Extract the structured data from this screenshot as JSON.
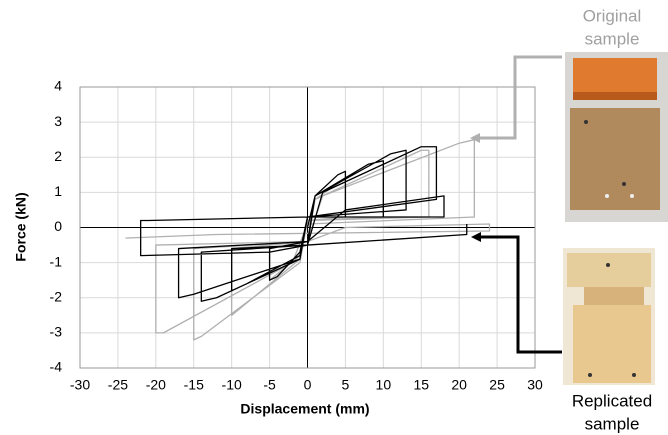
{
  "chart_data": {
    "type": "line",
    "x_label": "Displacement (mm)",
    "y_label": "Force (kN)",
    "xlim": [
      -30,
      30
    ],
    "ylim": [
      -4,
      4
    ],
    "xticks": [
      -30,
      -25,
      -20,
      -15,
      -10,
      -5,
      0,
      5,
      10,
      15,
      20,
      25,
      30
    ],
    "yticks": [
      -4,
      -3,
      -2,
      -1,
      0,
      1,
      2,
      3,
      4
    ],
    "grid": true,
    "series": [
      {
        "color": "#b0b0b0",
        "x": [
          0,
          1,
          5,
          5,
          0,
          -1,
          -5,
          -5,
          0,
          1,
          10,
          10,
          0,
          -1,
          -10,
          -10,
          0,
          1,
          15,
          16,
          16,
          0,
          -1,
          -14,
          -15,
          -15,
          0,
          2,
          20,
          22,
          22,
          0,
          -2,
          -19,
          -20,
          -20,
          0,
          5,
          24,
          24,
          -12,
          -24
        ],
        "values": [
          0,
          0.8,
          1.4,
          0.3,
          0.2,
          -0.8,
          -1.5,
          -0.5,
          -0.4,
          0.8,
          1.7,
          0.3,
          0.2,
          -0.9,
          -2.5,
          -0.6,
          -0.4,
          0.8,
          2.2,
          2.2,
          0.3,
          0.2,
          -1.0,
          -3.1,
          -3.2,
          -0.6,
          -0.4,
          0.9,
          2.4,
          2.5,
          0.3,
          0.1,
          -1.0,
          -3.0,
          -3.0,
          -0.5,
          -0.4,
          0,
          0.1,
          -0.1,
          -0.2,
          -0.3
        ]
      },
      {
        "color": "#000000",
        "x": [
          0,
          1,
          4,
          5,
          5,
          0,
          -1,
          -4,
          -5,
          -5,
          0,
          1,
          8,
          10,
          10,
          0,
          -1,
          -8,
          -10,
          -10,
          0,
          1,
          11,
          13,
          13,
          0,
          -1,
          -12,
          -14,
          -14,
          0,
          2,
          15,
          17,
          17,
          0,
          -1,
          -15,
          -17,
          -17,
          0,
          5,
          18,
          18,
          0,
          -21,
          -22,
          -22,
          -5,
          0,
          21,
          21
        ],
        "values": [
          0,
          0.9,
          1.5,
          1.6,
          0.3,
          0.3,
          -0.7,
          -1.4,
          -1.5,
          -0.6,
          -0.4,
          0.9,
          1.8,
          1.9,
          0.3,
          0.3,
          -0.8,
          -1.6,
          -1.8,
          -0.6,
          -0.5,
          0.9,
          2.1,
          2.2,
          0.5,
          0.3,
          -0.9,
          -2.0,
          -2.1,
          -0.7,
          -0.5,
          1.0,
          2.3,
          2.3,
          0.8,
          0.3,
          -0.9,
          -1.9,
          -2.0,
          -0.6,
          -0.4,
          0.5,
          0.9,
          0.3,
          0.3,
          0.2,
          0.2,
          -0.8,
          -0.7,
          -0.5,
          -0.2,
          0.1
        ]
      }
    ],
    "annotations": {
      "original": [
        "Original",
        "sample"
      ],
      "replicated": [
        "Replicated",
        "sample"
      ]
    }
  }
}
